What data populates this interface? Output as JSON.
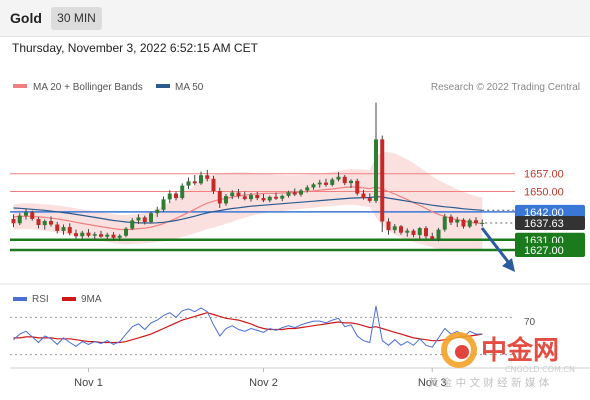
{
  "header": {
    "symbol": "Gold",
    "timeframe": "30 MIN"
  },
  "timestamp": "Thursday, November 3, 2022 6:52:15 AM CET",
  "legend": {
    "ma20_label": "MA 20 + Bollinger Bands",
    "ma50_label": "MA 50",
    "ma20_color": "#f08080",
    "ma50_color": "#2a5b8f",
    "credit": "Research © 2022 Trading Central"
  },
  "rsi_legend": {
    "rsi_label": "RSI",
    "ma_label": "9MA",
    "rsi_color": "#4a6fd6",
    "ma_color": "#d01818"
  },
  "rsi_level_label": "70",
  "x_ticks": [
    "Nov 1",
    "Nov 2",
    "Nov 3"
  ],
  "watermark": {
    "brand": "中金网",
    "sub": "黄 金 中 文 财 经 新 媒 体",
    "url": "CNGOLD.COM.CN"
  },
  "colors": {
    "bullish": "#2e7d32",
    "bearish": "#c62828",
    "resistance": "#f08080",
    "support": "#1b7a1b",
    "pivot": "#3a78d8",
    "last_price": "#333333",
    "band_fill": "#f9d6d6",
    "arrow": "#2a5b9f"
  },
  "chart_data": {
    "type": "candlestick",
    "title": "Gold",
    "timeframe": "30 MIN",
    "ylim": [
      1614,
      1686
    ],
    "levels": [
      {
        "value": 1657.0,
        "label": "1657.00",
        "kind": "resistance"
      },
      {
        "value": 1650.0,
        "label": "1650.00",
        "kind": "resistance"
      },
      {
        "value": 1642.0,
        "label": "1642.00",
        "kind": "pivot"
      },
      {
        "value": 1631.0,
        "label": "1631.00",
        "kind": "support"
      },
      {
        "value": 1627.0,
        "label": "1627.00",
        "kind": "support"
      }
    ],
    "last_price": 1637.63,
    "last_price_label": "1637.63",
    "candles": [
      [
        1639.2,
        1641.0,
        1636.0,
        1637.5
      ],
      [
        1637.5,
        1641.5,
        1636.8,
        1640.5
      ],
      [
        1640.5,
        1643.2,
        1639.0,
        1641.8
      ],
      [
        1641.8,
        1642.5,
        1638.5,
        1639.2
      ],
      [
        1639.2,
        1640.0,
        1635.5,
        1636.8
      ],
      [
        1636.8,
        1639.0,
        1635.0,
        1638.4
      ],
      [
        1638.4,
        1640.2,
        1636.2,
        1637.0
      ],
      [
        1637.0,
        1638.0,
        1633.5,
        1634.5
      ],
      [
        1634.5,
        1637.0,
        1633.0,
        1636.0
      ],
      [
        1636.0,
        1637.5,
        1632.8,
        1633.6
      ],
      [
        1633.6,
        1635.0,
        1631.5,
        1632.4
      ],
      [
        1632.4,
        1634.5,
        1631.2,
        1633.8
      ],
      [
        1633.8,
        1635.2,
        1632.0,
        1632.6
      ],
      [
        1632.6,
        1634.0,
        1631.0,
        1633.2
      ],
      [
        1633.2,
        1634.5,
        1631.8,
        1632.2
      ],
      [
        1632.2,
        1633.8,
        1631.0,
        1633.0
      ],
      [
        1633.0,
        1634.0,
        1630.8,
        1631.8
      ],
      [
        1631.8,
        1633.2,
        1630.5,
        1632.6
      ],
      [
        1632.6,
        1636.0,
        1632.0,
        1635.4
      ],
      [
        1635.4,
        1639.5,
        1634.8,
        1638.6
      ],
      [
        1638.6,
        1641.0,
        1637.2,
        1639.8
      ],
      [
        1639.8,
        1640.5,
        1637.0,
        1638.0
      ],
      [
        1638.0,
        1642.2,
        1637.4,
        1641.5
      ],
      [
        1641.5,
        1644.0,
        1640.0,
        1642.8
      ],
      [
        1642.8,
        1648.0,
        1642.0,
        1646.9
      ],
      [
        1646.9,
        1650.5,
        1645.5,
        1649.2
      ],
      [
        1649.2,
        1650.0,
        1646.5,
        1647.4
      ],
      [
        1647.4,
        1653.2,
        1646.8,
        1652.3
      ],
      [
        1652.3,
        1655.5,
        1651.0,
        1654.0
      ],
      [
        1654.0,
        1656.5,
        1652.5,
        1653.2
      ],
      [
        1653.2,
        1657.8,
        1652.6,
        1656.4
      ],
      [
        1656.4,
        1658.5,
        1654.0,
        1655.0
      ],
      [
        1655.0,
        1656.2,
        1649.0,
        1650.2
      ],
      [
        1650.2,
        1651.5,
        1643.5,
        1645.3
      ],
      [
        1645.3,
        1649.0,
        1644.4,
        1648.2
      ],
      [
        1648.2,
        1650.5,
        1647.0,
        1649.6
      ],
      [
        1649.6,
        1651.0,
        1647.2,
        1648.1
      ],
      [
        1648.1,
        1650.0,
        1646.5,
        1647.0
      ],
      [
        1647.0,
        1649.4,
        1646.0,
        1648.6
      ],
      [
        1648.6,
        1649.8,
        1646.6,
        1647.4
      ],
      [
        1647.4,
        1649.0,
        1645.8,
        1646.5
      ],
      [
        1646.5,
        1648.4,
        1645.8,
        1647.9
      ],
      [
        1647.9,
        1649.6,
        1646.7,
        1647.2
      ],
      [
        1647.2,
        1648.8,
        1646.2,
        1648.3
      ],
      [
        1648.3,
        1650.3,
        1647.6,
        1649.7
      ],
      [
        1649.7,
        1651.2,
        1648.2,
        1648.8
      ],
      [
        1648.8,
        1651.0,
        1648.0,
        1650.4
      ],
      [
        1650.4,
        1652.5,
        1649.6,
        1651.6
      ],
      [
        1651.6,
        1653.4,
        1650.7,
        1652.8
      ],
      [
        1652.8,
        1654.6,
        1651.5,
        1653.5
      ],
      [
        1653.5,
        1655.0,
        1651.9,
        1652.6
      ],
      [
        1652.6,
        1655.4,
        1652.0,
        1654.7
      ],
      [
        1654.7,
        1657.6,
        1654.0,
        1655.8
      ],
      [
        1655.8,
        1656.5,
        1652.5,
        1653.3
      ],
      [
        1653.3,
        1654.8,
        1651.4,
        1654.2
      ],
      [
        1654.2,
        1655.0,
        1648.4,
        1649.2
      ],
      [
        1649.2,
        1650.6,
        1646.8,
        1647.4
      ],
      [
        1647.4,
        1649.3,
        1645.6,
        1646.3
      ],
      [
        1646.3,
        1685.0,
        1645.5,
        1670.5
      ],
      [
        1670.5,
        1672.0,
        1634.0,
        1638.2
      ],
      [
        1638.2,
        1639.5,
        1633.0,
        1634.8
      ],
      [
        1634.8,
        1637.2,
        1633.6,
        1636.3
      ],
      [
        1636.3,
        1636.8,
        1633.0,
        1633.8
      ],
      [
        1633.8,
        1635.5,
        1632.2,
        1634.6
      ],
      [
        1634.6,
        1635.2,
        1632.0,
        1632.9
      ],
      [
        1632.9,
        1636.0,
        1631.4,
        1635.6
      ],
      [
        1635.6,
        1636.4,
        1631.5,
        1632.4
      ],
      [
        1632.4,
        1633.8,
        1630.6,
        1631.5
      ],
      [
        1631.5,
        1635.7,
        1630.4,
        1635.0
      ],
      [
        1635.0,
        1641.2,
        1634.2,
        1640.1
      ],
      [
        1640.1,
        1641.0,
        1636.8,
        1637.8
      ],
      [
        1637.8,
        1640.0,
        1636.0,
        1638.9
      ],
      [
        1638.9,
        1639.5,
        1635.4,
        1636.2
      ],
      [
        1636.2,
        1639.4,
        1635.6,
        1638.7
      ],
      [
        1638.7,
        1639.9,
        1636.6,
        1637.6
      ],
      [
        1637.6,
        1639.0,
        1636.2,
        1637.63
      ]
    ],
    "ma20": [
      1640.0,
      1640.2,
      1640.3,
      1640.2,
      1640.0,
      1639.8,
      1639.5,
      1639.2,
      1638.8,
      1638.4,
      1637.9,
      1637.4,
      1637.0,
      1636.6,
      1636.2,
      1635.8,
      1635.4,
      1635.1,
      1635.0,
      1635.1,
      1635.4,
      1635.6,
      1636.0,
      1636.6,
      1637.4,
      1638.4,
      1639.4,
      1640.6,
      1641.8,
      1643.0,
      1644.3,
      1645.4,
      1646.2,
      1646.8,
      1647.3,
      1647.8,
      1648.3,
      1648.6,
      1648.9,
      1649.1,
      1649.2,
      1649.3,
      1649.3,
      1649.4,
      1649.5,
      1649.6,
      1649.8,
      1650.0,
      1650.2,
      1650.5,
      1650.8,
      1651.0,
      1651.3,
      1651.6,
      1651.8,
      1651.7,
      1651.4,
      1651.1,
      1651.8,
      1651.0,
      1650.0,
      1649.0,
      1647.9,
      1646.8,
      1645.6,
      1644.5,
      1643.3,
      1642.0,
      1641.0,
      1640.2,
      1639.5,
      1638.9,
      1638.4,
      1637.9,
      1637.6,
      1637.4
    ],
    "ma50": [
      1643.5,
      1643.4,
      1643.2,
      1643.0,
      1642.8,
      1642.6,
      1642.3,
      1642.0,
      1641.7,
      1641.4,
      1641.0,
      1640.6,
      1640.2,
      1639.8,
      1639.4,
      1639.0,
      1638.6,
      1638.3,
      1638.0,
      1637.8,
      1637.7,
      1637.6,
      1637.6,
      1637.7,
      1637.9,
      1638.2,
      1638.6,
      1639.1,
      1639.7,
      1640.3,
      1641.0,
      1641.6,
      1642.1,
      1642.5,
      1642.9,
      1643.3,
      1643.6,
      1643.9,
      1644.2,
      1644.4,
      1644.6,
      1644.8,
      1645.0,
      1645.2,
      1645.4,
      1645.6,
      1645.8,
      1646.0,
      1646.2,
      1646.4,
      1646.6,
      1646.8,
      1647.0,
      1647.2,
      1647.4,
      1647.5,
      1647.6,
      1647.6,
      1648.0,
      1647.8,
      1647.4,
      1647.0,
      1646.6,
      1646.2,
      1645.8,
      1645.4,
      1645.0,
      1644.6,
      1644.3,
      1644.0,
      1643.8,
      1643.5,
      1643.2,
      1643.0,
      1642.8,
      1642.6
    ],
    "bb_width": [
      5.0,
      5.0,
      5.1,
      5.1,
      5.2,
      5.2,
      5.3,
      5.3,
      5.4,
      5.4,
      5.5,
      5.5,
      5.6,
      5.6,
      5.6,
      5.7,
      5.7,
      5.7,
      5.8,
      5.8,
      5.9,
      6.0,
      6.2,
      6.5,
      7.0,
      7.5,
      8.0,
      8.5,
      9.0,
      9.5,
      10.0,
      10.2,
      10.4,
      10.3,
      10.0,
      9.7,
      9.3,
      8.9,
      8.5,
      8.1,
      7.8,
      7.5,
      7.3,
      7.1,
      6.9,
      6.8,
      6.7,
      6.6,
      6.6,
      6.6,
      6.6,
      6.7,
      6.8,
      6.9,
      7.0,
      7.1,
      7.2,
      7.3,
      12.0,
      14.5,
      15.5,
      16.0,
      16.0,
      15.8,
      15.5,
      15.0,
      14.5,
      14.0,
      13.5,
      13.0,
      12.5,
      12.0,
      11.5,
      11.0,
      10.5,
      10.2
    ],
    "rsi": {
      "ylim": [
        20,
        80
      ],
      "levels": [
        70
      ],
      "rsi": [
        46,
        52,
        55,
        49,
        43,
        50,
        47,
        41,
        48,
        43,
        39,
        44,
        41,
        44,
        42,
        45,
        41,
        44,
        52,
        60,
        63,
        57,
        64,
        67,
        72,
        75,
        70,
        77,
        79,
        76,
        80,
        76,
        62,
        50,
        58,
        61,
        57,
        55,
        58,
        56,
        54,
        58,
        56,
        59,
        61,
        59,
        62,
        64,
        66,
        66,
        64,
        67,
        69,
        60,
        62,
        50,
        45,
        43,
        82,
        45,
        40,
        46,
        40,
        44,
        40,
        47,
        40,
        38,
        48,
        58,
        52,
        55,
        49,
        55,
        52,
        52
      ],
      "ma9": [
        48,
        48,
        49,
        49,
        48,
        48,
        48,
        47,
        47,
        47,
        46,
        45,
        44,
        44,
        43,
        43,
        43,
        43,
        44,
        46,
        48,
        50,
        52,
        55,
        58,
        61,
        64,
        67,
        69,
        71,
        73,
        75,
        73,
        71,
        69,
        68,
        67,
        65,
        63,
        60,
        58,
        57,
        57,
        57,
        58,
        58,
        59,
        60,
        61,
        62,
        63,
        64,
        65,
        64,
        64,
        63,
        61,
        59,
        60,
        58,
        56,
        54,
        52,
        50,
        48,
        47,
        46,
        45,
        45,
        46,
        47,
        48,
        49,
        50,
        51,
        52
      ]
    }
  }
}
